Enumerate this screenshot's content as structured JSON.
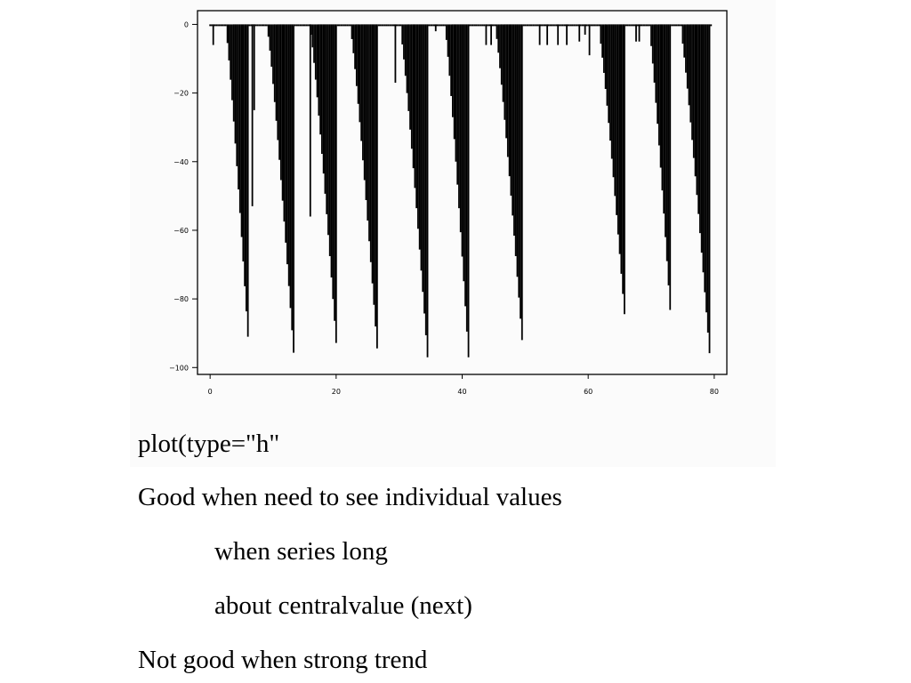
{
  "chart_data": {
    "type": "bar",
    "style": "vertical lines from zero (type=h)",
    "title": "",
    "xlabel": "",
    "ylabel": "",
    "xlim": [
      -2,
      82
    ],
    "ylim": [
      -102,
      4
    ],
    "x_ticks": [
      0,
      20,
      40,
      60,
      80
    ],
    "x_tick_labels": [
      "0",
      "20",
      "40",
      "60",
      "80"
    ],
    "y_ticks": [
      0,
      -20,
      -40,
      -60,
      -80,
      -100
    ],
    "y_tick_labels": [
      "0",
      "−20",
      "−40",
      "−60",
      "−80",
      "−100"
    ],
    "grid": false,
    "legend": "none",
    "color": "#000000",
    "x_step": 0.25,
    "baseline_depth": -0.5,
    "troughs": [
      {
        "start": 2.6,
        "end": 6.2,
        "bottom": 97
      },
      {
        "start": 9.2,
        "end": 13.3,
        "bottom": 97
      },
      {
        "start": 16.0,
        "end": 20.2,
        "bottom": 98
      },
      {
        "start": 22.4,
        "end": 26.6,
        "bottom": 97
      },
      {
        "start": 30.3,
        "end": 34.5,
        "bottom": 97
      },
      {
        "start": 37.4,
        "end": 41.0,
        "bottom": 97
      },
      {
        "start": 45.4,
        "end": 49.7,
        "bottom": 97
      },
      {
        "start": 61.8,
        "end": 65.9,
        "bottom": 88
      },
      {
        "start": 69.8,
        "end": 73.2,
        "bottom": 89
      },
      {
        "start": 74.8,
        "end": 79.3,
        "bottom": 97
      }
    ],
    "spikes": [
      {
        "x": 0.5,
        "y": -6
      },
      {
        "x": 6.7,
        "y": -53
      },
      {
        "x": 7.0,
        "y": -25
      },
      {
        "x": 15.9,
        "y": -56
      },
      {
        "x": 29.4,
        "y": -17
      },
      {
        "x": 35.8,
        "y": -2
      },
      {
        "x": 43.8,
        "y": -6
      },
      {
        "x": 44.6,
        "y": -6
      },
      {
        "x": 52.3,
        "y": -6
      },
      {
        "x": 53.5,
        "y": -6
      },
      {
        "x": 55.2,
        "y": -6
      },
      {
        "x": 56.6,
        "y": -6
      },
      {
        "x": 58.6,
        "y": -5
      },
      {
        "x": 59.5,
        "y": -3
      },
      {
        "x": 60.2,
        "y": -9
      },
      {
        "x": 67.6,
        "y": -5
      },
      {
        "x": 68.1,
        "y": -5
      }
    ]
  },
  "text_lines": [
    "plot(type=\"h\"",
    "Good when need to see individual values",
    "when series long",
    "about centralvalue (next)",
    "Not good when strong trend"
  ]
}
